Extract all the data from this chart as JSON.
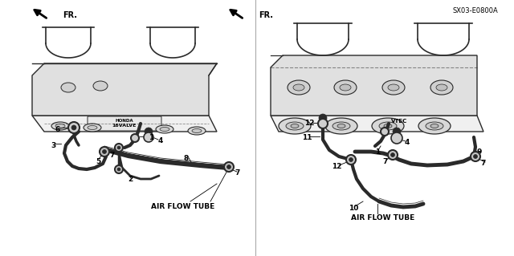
{
  "bg_color": "#ffffff",
  "line_color": "#2a2a2a",
  "text_color": "#000000",
  "left_label": "AIR FLOW TUBE",
  "right_label": "AIR FLOW TUBE",
  "fr_label": "FR.",
  "ref_code": "SX03-E0800A",
  "figsize": [
    6.4,
    3.19
  ],
  "dpi": 100,
  "divider_color": "#aaaaaa",
  "gray": "#555555"
}
